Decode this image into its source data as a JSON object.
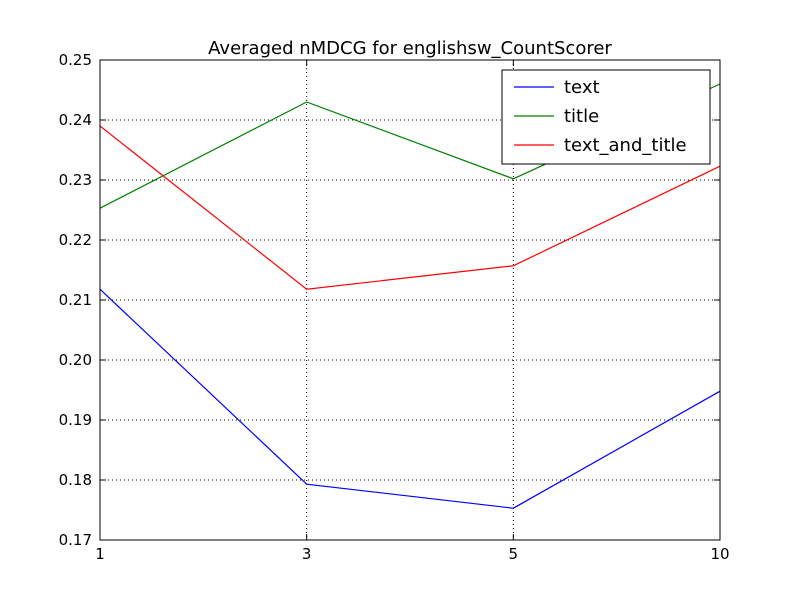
{
  "chart_data": {
    "type": "line",
    "title": "Averaged nMDCG for englishsw_CountScorer",
    "xlabel": "",
    "ylabel": "",
    "categories": [
      "1",
      "3",
      "5",
      "10"
    ],
    "ylim": [
      0.17,
      0.25
    ],
    "yticks": [
      "0.17",
      "0.18",
      "0.19",
      "0.20",
      "0.21",
      "0.22",
      "0.23",
      "0.24",
      "0.25"
    ],
    "grid": true,
    "legend": "top-right",
    "series": [
      {
        "name": "text",
        "color": "#0000ff",
        "values": [
          0.2118,
          0.1793,
          0.1753,
          0.1948
        ]
      },
      {
        "name": "title",
        "color": "#008000",
        "values": [
          0.2253,
          0.243,
          0.2302,
          0.246
        ]
      },
      {
        "name": "text_and_title",
        "color": "#ff0000",
        "values": [
          0.239,
          0.2118,
          0.2157,
          0.2323
        ]
      }
    ]
  }
}
